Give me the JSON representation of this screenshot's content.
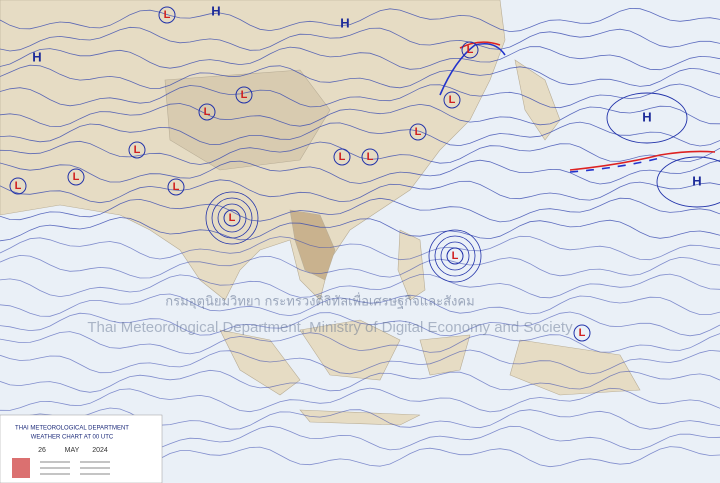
{
  "watermark": {
    "thai": "กรมอุตุนิยมวิทยา กระทรวงดิจิทัลเพื่อเศรษฐกิจและสังคม",
    "english": "Thai Meteorological Department, Ministry of Digital Economy and Society"
  },
  "legend": {
    "agency": "THAI METEOROLOGICAL DEPARTMENT",
    "chart_title": "WEATHER CHART AT 00 UTC",
    "day": "26",
    "month": "MAY",
    "year": "2024"
  },
  "pressure_centers": [
    "H",
    "H",
    "H",
    "H",
    "H",
    "L",
    "L",
    "L",
    "L",
    "L",
    "L",
    "L",
    "L",
    "L",
    "L",
    "L",
    "L",
    "L",
    "L",
    "L"
  ]
}
